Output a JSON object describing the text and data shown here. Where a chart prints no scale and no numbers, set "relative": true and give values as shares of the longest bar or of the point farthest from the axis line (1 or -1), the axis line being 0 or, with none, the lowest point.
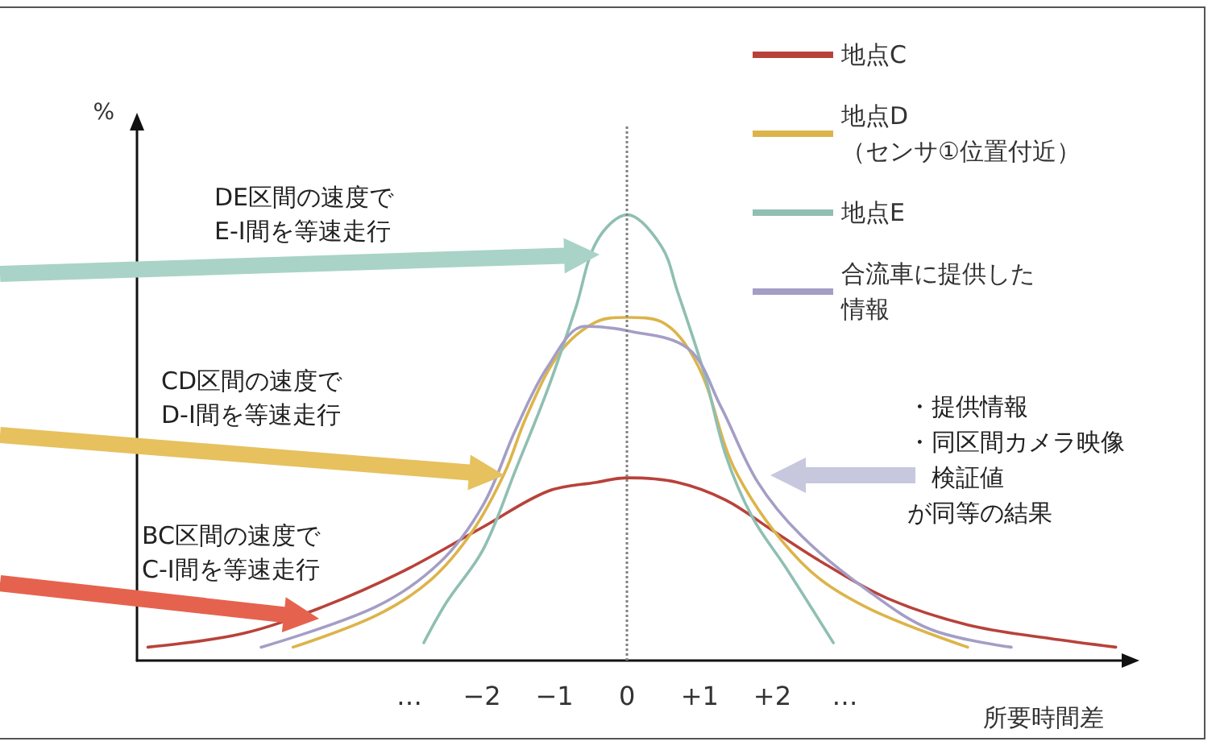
{
  "chart_data": {
    "type": "line",
    "relative": true,
    "ylabel": "%",
    "xlabel": "所要時間差",
    "xlim": [
      -6.75,
      6.9
    ],
    "xticks": [
      {
        "value": -3,
        "label": "…"
      },
      {
        "value": -2,
        "label": "−2"
      },
      {
        "value": -1,
        "label": "−1"
      },
      0,
      {
        "value": 1,
        "label": "+1"
      },
      {
        "value": 2,
        "label": "+2"
      },
      {
        "value": 3,
        "label": "…"
      }
    ],
    "legend": "top right",
    "marker": "none",
    "line_style": "solid",
    "grid": false,
    "ref_lines": [
      {
        "axis": "x",
        "value": 0,
        "color": "#808080",
        "line_style": "dotted"
      }
    ],
    "annotations": [
      "DE区間の速度で\nE-I間を等速走行",
      "CD区間の速度で\nD-I間を等速走行",
      "BC区間の速度で\nC-I間を等速走行",
      "・提供情報",
      "・同区間カメラ映像",
      "検証値",
      "が同等の結果"
    ],
    "series": [
      {
        "name": "地点C",
        "color": "#b8423a",
        "x": [
          -6.6,
          -5.31,
          -4.2,
          -3.09,
          -1.98,
          -1.09,
          -0.42,
          0,
          0.69,
          1.36,
          2.02,
          2.69,
          3.58,
          4.69,
          5.8,
          6.73
        ],
        "values": [
          0.03,
          0.06,
          0.12,
          0.2,
          0.3,
          0.38,
          0.4,
          0.41,
          0.4,
          0.36,
          0.29,
          0.22,
          0.14,
          0.08,
          0.05,
          0.03
        ]
      },
      {
        "name": "地点D\n（センサ①位置付近）",
        "color": "#dcb44a",
        "x": [
          -4.6,
          -3.47,
          -2.71,
          -2.13,
          -1.69,
          -1.38,
          -0.93,
          -0.42,
          0,
          0.47,
          0.98,
          1.51,
          2.4,
          3.29,
          4.69
        ],
        "values": [
          0.03,
          0.1,
          0.18,
          0.29,
          0.42,
          0.55,
          0.69,
          0.76,
          0.77,
          0.76,
          0.66,
          0.42,
          0.22,
          0.12,
          0.03
        ]
      },
      {
        "name": "地点E",
        "color": "#8fbfb2",
        "x": [
          -2.8,
          -2.49,
          -1.98,
          -1.53,
          -1.09,
          -0.71,
          -0.42,
          0,
          0.47,
          0.69,
          1.07,
          1.36,
          1.73,
          2.18,
          2.84
        ],
        "values": [
          0.04,
          0.13,
          0.25,
          0.43,
          0.61,
          0.79,
          0.94,
          1,
          0.93,
          0.83,
          0.64,
          0.46,
          0.32,
          0.21,
          0.04
        ]
      },
      {
        "name": "合流車に提供した情報",
        "color": "#a49ec6",
        "x": [
          -5.04,
          -3.47,
          -2.58,
          -1.98,
          -1.53,
          -1.09,
          -0.58,
          0,
          0.84,
          1.29,
          1.8,
          2.4,
          3.29,
          4.18,
          5.29
        ],
        "values": [
          0.03,
          0.12,
          0.22,
          0.35,
          0.52,
          0.66,
          0.75,
          0.74,
          0.7,
          0.57,
          0.4,
          0.28,
          0.16,
          0.07,
          0.03
        ]
      }
    ]
  }
}
